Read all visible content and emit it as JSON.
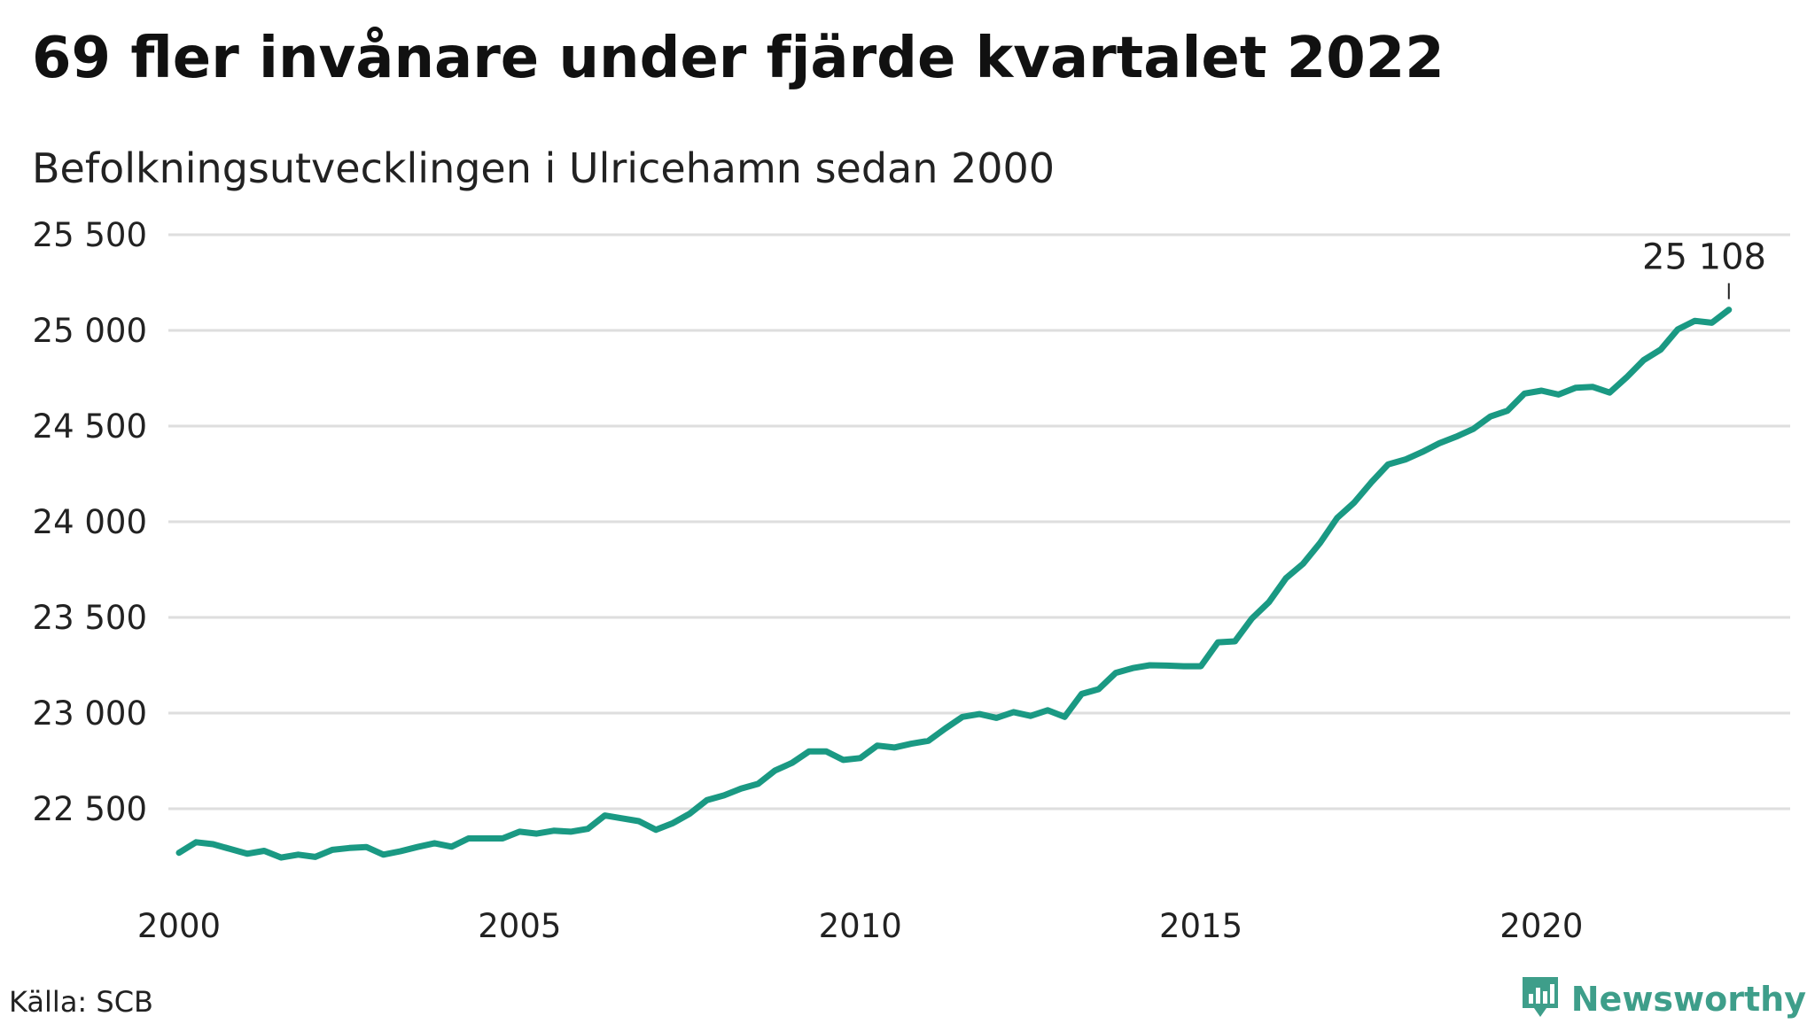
{
  "header": {
    "title": "69 fler invånare under fjärde kvartalet 2022",
    "subtitle": "Befolkningsutvecklingen i Ulricehamn sedan 2000"
  },
  "footer": {
    "source": "Källa: SCB",
    "brand": "Newsworthy",
    "brand_icon": "bar-chart-logo-icon"
  },
  "colors": {
    "line": "#1a9983",
    "grid": "#dedede",
    "brand": "#3e9e8a"
  },
  "chart_data": {
    "type": "line",
    "title": "69 fler invånare under fjärde kvartalet 2022",
    "subtitle": "Befolkningsutvecklingen i Ulricehamn sedan 2000",
    "xlabel": "",
    "ylabel": "",
    "grid": true,
    "xlim": [
      2000,
      2023
    ],
    "ylim": [
      22200,
      25600
    ],
    "x_ticks": [
      2000,
      2005,
      2010,
      2015,
      2020
    ],
    "x_tick_labels": [
      "2000",
      "2005",
      "2010",
      "2015",
      "2020"
    ],
    "y_ticks": [
      22500,
      23000,
      23500,
      24000,
      24500,
      25000,
      25500
    ],
    "y_tick_labels": [
      "22 500",
      "23 000",
      "23 500",
      "24 000",
      "24 500",
      "25 000",
      "25 500"
    ],
    "end_label": "25 108",
    "series": [
      {
        "values": [
          [
            2000.0,
            22270
          ],
          [
            2000.25,
            22325
          ],
          [
            2000.5,
            22315
          ],
          [
            2000.75,
            22290
          ],
          [
            2001.0,
            22265
          ],
          [
            2001.25,
            22280
          ],
          [
            2001.5,
            22245
          ],
          [
            2001.75,
            22260
          ],
          [
            2002.0,
            22248
          ],
          [
            2002.25,
            22285
          ],
          [
            2002.5,
            22295
          ],
          [
            2002.75,
            22300
          ],
          [
            2003.0,
            22260
          ],
          [
            2003.25,
            22278
          ],
          [
            2003.5,
            22300
          ],
          [
            2003.75,
            22320
          ],
          [
            2004.0,
            22302
          ],
          [
            2004.25,
            22345
          ],
          [
            2004.5,
            22345
          ],
          [
            2004.75,
            22345
          ],
          [
            2005.0,
            22380
          ],
          [
            2005.25,
            22370
          ],
          [
            2005.5,
            22385
          ],
          [
            2005.75,
            22380
          ],
          [
            2006.0,
            22395
          ],
          [
            2006.25,
            22465
          ],
          [
            2006.5,
            22450
          ],
          [
            2006.75,
            22435
          ],
          [
            2007.0,
            22390
          ],
          [
            2007.25,
            22425
          ],
          [
            2007.5,
            22475
          ],
          [
            2007.75,
            22545
          ],
          [
            2008.0,
            22570
          ],
          [
            2008.25,
            22605
          ],
          [
            2008.5,
            22630
          ],
          [
            2008.75,
            22700
          ],
          [
            2009.0,
            22740
          ],
          [
            2009.25,
            22800
          ],
          [
            2009.5,
            22800
          ],
          [
            2009.75,
            22755
          ],
          [
            2010.0,
            22765
          ],
          [
            2010.25,
            22830
          ],
          [
            2010.5,
            22820
          ],
          [
            2010.75,
            22840
          ],
          [
            2011.0,
            22855
          ],
          [
            2011.25,
            22920
          ],
          [
            2011.5,
            22980
          ],
          [
            2011.75,
            22995
          ],
          [
            2012.0,
            22975
          ],
          [
            2012.25,
            23005
          ],
          [
            2012.5,
            22985
          ],
          [
            2012.75,
            23015
          ],
          [
            2013.0,
            22980
          ],
          [
            2013.25,
            23100
          ],
          [
            2013.5,
            23125
          ],
          [
            2013.75,
            23210
          ],
          [
            2014.0,
            23235
          ],
          [
            2014.25,
            23250
          ],
          [
            2014.5,
            23248
          ],
          [
            2014.75,
            23245
          ],
          [
            2015.0,
            23245
          ],
          [
            2015.25,
            23370
          ],
          [
            2015.5,
            23375
          ],
          [
            2015.75,
            23495
          ],
          [
            2016.0,
            23580
          ],
          [
            2016.25,
            23705
          ],
          [
            2016.5,
            23780
          ],
          [
            2016.75,
            23890
          ],
          [
            2017.0,
            24020
          ],
          [
            2017.25,
            24100
          ],
          [
            2017.5,
            24205
          ],
          [
            2017.75,
            24300
          ],
          [
            2018.0,
            24325
          ],
          [
            2018.25,
            24365
          ],
          [
            2018.5,
            24410
          ],
          [
            2018.75,
            24445
          ],
          [
            2019.0,
            24485
          ],
          [
            2019.25,
            24550
          ],
          [
            2019.5,
            24580
          ],
          [
            2019.75,
            24670
          ],
          [
            2020.0,
            24685
          ],
          [
            2020.25,
            24665
          ],
          [
            2020.5,
            24700
          ],
          [
            2020.75,
            24705
          ],
          [
            2021.0,
            24675
          ],
          [
            2021.25,
            24755
          ],
          [
            2021.5,
            24845
          ],
          [
            2021.75,
            24900
          ],
          [
            2022.0,
            25005
          ],
          [
            2022.25,
            25050
          ],
          [
            2022.5,
            25040
          ],
          [
            2022.75,
            25108
          ]
        ]
      }
    ]
  }
}
